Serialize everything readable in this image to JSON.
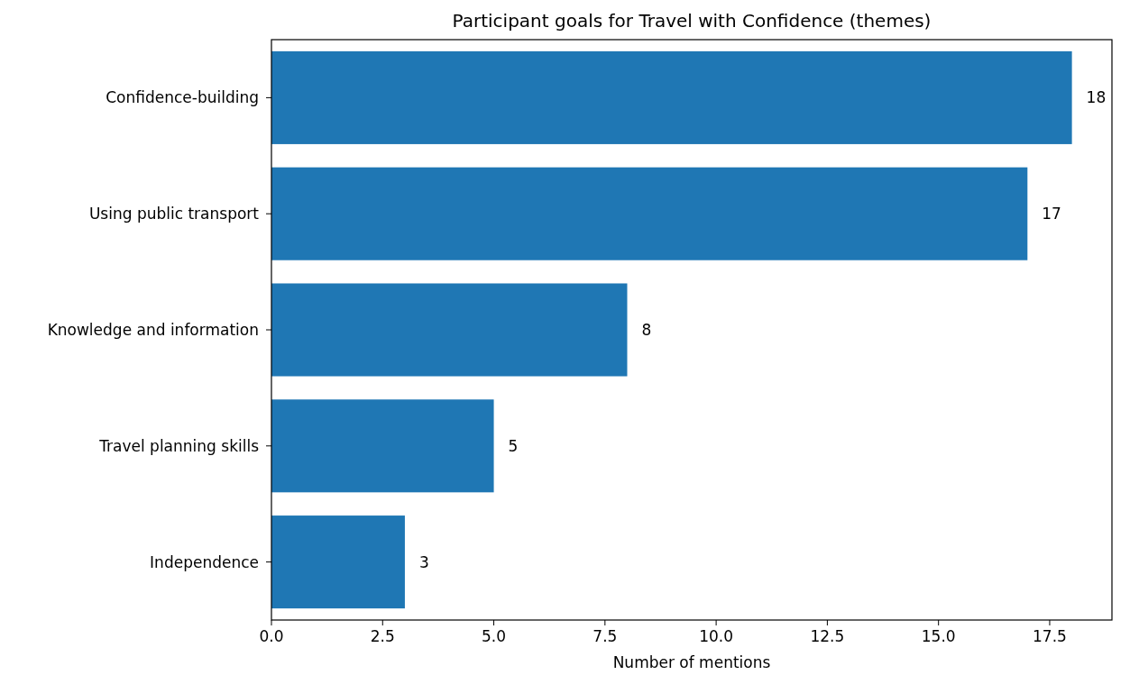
{
  "chart_data": {
    "type": "bar",
    "orientation": "horizontal",
    "title": "Participant goals for Travel with Confidence (themes)",
    "xlabel": "Number of mentions",
    "categories": [
      "Confidence-building",
      "Using public transport",
      "Knowledge and information",
      "Travel planning skills",
      "Independence"
    ],
    "values": [
      18,
      17,
      8,
      5,
      3
    ],
    "color": "#1f77b4",
    "data_labels": true,
    "grid": false,
    "xlim": [
      0,
      18.9
    ],
    "xticks": [
      {
        "value": 0,
        "label": "0.0"
      },
      {
        "value": 2.5,
        "label": "2.5"
      },
      {
        "value": 5,
        "label": "5.0"
      },
      {
        "value": 7.5,
        "label": "7.5"
      },
      {
        "value": 10,
        "label": "10.0"
      },
      {
        "value": 12.5,
        "label": "12.5"
      },
      {
        "value": 15,
        "label": "15.0"
      },
      {
        "value": 17.5,
        "label": "17.5"
      }
    ]
  }
}
